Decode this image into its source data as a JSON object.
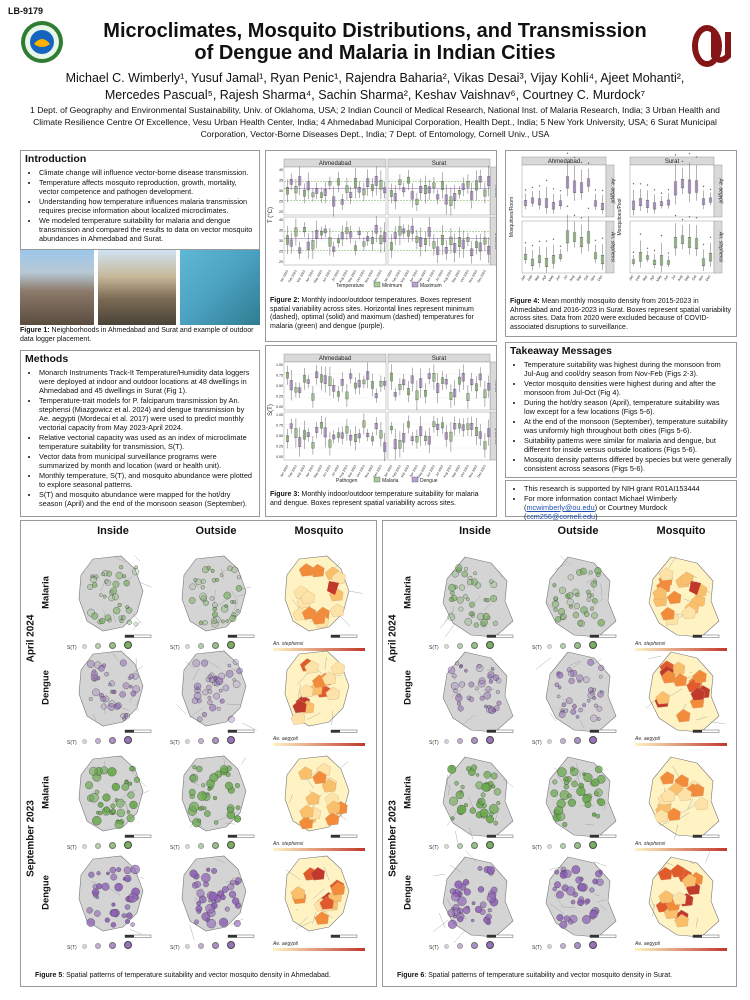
{
  "poster_code": "LB-9179",
  "title_line1": "Microclimates, Mosquito Distributions, and Transmission",
  "title_line2": "of Dengue and Malaria in Indian Cities",
  "authors_line1": "Michael C. Wimberly¹, Yusuf Jamal¹, Ryan Penic¹, Rajendra Baharia², Vikas Desai³, Vijay Kohli⁴, Ajeet Mohanti²,",
  "authors_line2": "Mercedes Pascual⁵, Rajesh Sharma⁴, Sachin Sharma², Keshav Vaishnav⁶, Courtney C. Murdock⁷",
  "affiliations": "1 Dept. of Geography and Environmental Sustainability, Univ. of Oklahoma, USA; 2 Indian Council of Medical Research, National Inst. of Malaria Research, India; 3 Urban Health and Climate Resilience Centre Of Excellence, Vesu Urban Health Center, India; 4 Ahmedabad Municipal Corporation, Health Dept., India; 5 New York University, USA; 6 Surat Municipal Corporation, Vector-Borne Diseases Dept., India; 7 Dept. of Entomology, Cornell Univ., USA",
  "intro": {
    "heading": "Introduction",
    "bullets": [
      "Climate change will influence vector-borne disease transmission.",
      "Temperature affects mosquito reproduction, growth, mortality, vector competence and pathogen development.",
      "Understanding how temperature influences malaria transmission requires precise information about localized microclimates.",
      "We modeled temperature suitability for malaria and dengue transmission and compared the results to data on vector mosquito abundances in Ahmedabad and Surat."
    ]
  },
  "fig1_caption": {
    "label": "Figure 1:",
    "text": " Neighborhoods in Ahmedabad and Surat and example of outdoor data logger placement."
  },
  "methods": {
    "heading": "Methods",
    "bullets": [
      "Monarch Instruments Track-It Temperature/Humidity data loggers were deployed at indoor and outdoor locations at 48 dwellings in Ahmedabad and 45 dwellings in Surat (Fig 1).",
      "Temperature-trait models for P. falciparum transmission by An. stephensi (Miazgowicz et al. 2024) and dengue transmission by Ae. aegypti (Mordecai et al. 2017) were used to predict monthly vectorial capacity from May 2023-April 2024.",
      "Relative vectorial capacity was used as an index of microclimate temperature suitability for transmission, S(T).",
      "Vector data from municipal surveillance programs were summarized by month and location (ward or health unit).",
      "Monthly temperature, S(T), and mosquito abundance were plotted to explore seasonal patterns.",
      "S(T) and mosquito abundance were mapped for the hot/dry season (April) and the end of the monsoon season (September)."
    ]
  },
  "fig2": {
    "cities": [
      "Ahmedabad",
      "Surat"
    ],
    "rows": [
      "Inside",
      "Outside"
    ],
    "ylabel": "T (°C)",
    "yticks": [
      "40",
      "35",
      "30",
      "25",
      "20"
    ],
    "legend_title": "Temperature",
    "legend_items": [
      "Minimum",
      "Maximum"
    ],
    "caption_label": "Figure 2:",
    "caption": " Monthly indoor/outdoor temperatures. Boxes represent spatial variability across sites. Horizontal lines represent minimum (dashed), optimal (solid) and maximum (dashed) temperatures for malaria (green) and dengue (purple)."
  },
  "fig3": {
    "cities": [
      "Ahmedabad",
      "Surat"
    ],
    "rows": [
      "Inside",
      "Outside"
    ],
    "ylabel": "S(T)",
    "yticks": [
      "1.00",
      "0.75",
      "0.50",
      "0.25",
      "0.00"
    ],
    "legend_title": "Pathogen",
    "legend_items": [
      "Malaria",
      "Dengue"
    ],
    "caption_label": "Figure 3:",
    "caption": " Monthly indoor/outdoor temperature suitability for malaria and dengue. Boxes represent spatial variability across sites."
  },
  "fig4": {
    "cities": [
      "Ahmedabad",
      "Surat"
    ],
    "rows": [
      "Ae. aegypti",
      "An. stephensi"
    ],
    "ylabel_left": "Mosquitoes/Room",
    "ylabel_right": "Mosquitoes/Pool",
    "caption_label": "Figure 4:",
    "caption": " Mean monthly mosquito density from 2015-2023 in Ahmedabad and 2016-2023 in Surat. Boxes represent spatial variability across sites. Data from 2020 were excluded because of COVID-associated disruptions to surveillance."
  },
  "months": [
    "Jan",
    "Feb",
    "Mar",
    "Apr",
    "May",
    "Jun",
    "Jul",
    "Aug",
    "Sep",
    "Oct",
    "Nov",
    "Dec"
  ],
  "month_labels": [
    "Jan 2023",
    "Feb 2023",
    "Mar 2023",
    "Apr 2023",
    "May 2023",
    "Jun 2023",
    "Jul 2023",
    "Aug 2023",
    "Sep 2023",
    "Oct 2023",
    "Nov 2023",
    "Dec 2023"
  ],
  "takeaway": {
    "heading": "Takeaway Messages",
    "bullets": [
      "Temperature suitability was highest during the monsoon from Jul-Aug and cool/dry season from Nov-Feb (Figs 2-3).",
      "Vector mosquito densities were highest during and after the monsoon from Jul-Oct (Fig 4).",
      "During the hot/dry season (April), temperature suitability was low except for a few locations (Figs 5-6).",
      "At the end of the monsoon (September), temperature suitability was uniformly high throughout both cities (Figs 5-6).",
      "Suitability patterns were similar for malaria and dengue, but different for inside versus outside locations (Figs 5-6).",
      "Mosquito density patterns differed by species but were generally consistent across seasons (Figs 5-6)."
    ]
  },
  "contact": {
    "line1": "This research is supported by NIH grant R01AI153444",
    "line2": "For more information contact Michael Wimberly",
    "email1": "mcwimberly@ou.edu",
    "or_text": " or Courtney Murdock ",
    "email2": "ccm256@cornell.edu"
  },
  "maps": {
    "col_headers": [
      "Inside",
      "Outside",
      "Mosquito"
    ],
    "period_labels": [
      "April 2024",
      "September 2023"
    ],
    "row_labels": [
      "Malaria",
      "Dengue",
      "Malaria",
      "Dengue"
    ],
    "st_label": "S(T)",
    "species": [
      "An. stephensi",
      "Ae. aegypti",
      "An. stephensi",
      "Ae. aegypti"
    ],
    "fig5_label": "Figure 5",
    "fig5_caption": ": Spatial patterns of temperature suitability and vector mosquito density in Ahmedabad.",
    "fig6_label": "Figure 6",
    "fig6_caption": ": Spatial patterns of temperature suitability and vector mosquito density in Surat."
  },
  "colors": {
    "malaria": "#6aa84f",
    "dengue": "#8e63b5",
    "heat_low": "#fff3c4",
    "heat_high": "#c0392b",
    "ou_crimson": "#841617"
  }
}
